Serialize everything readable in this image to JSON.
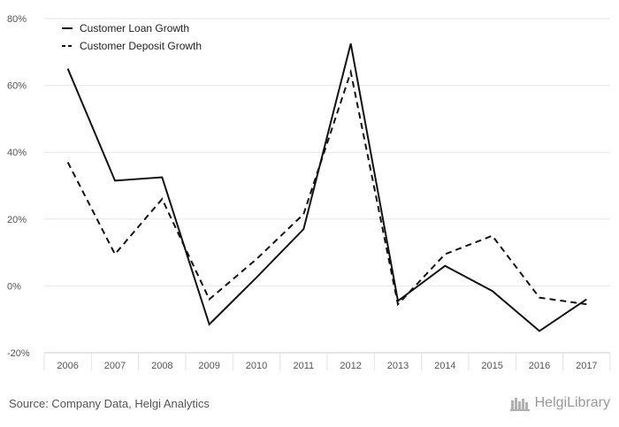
{
  "chart_data": {
    "type": "line",
    "categories": [
      "2006",
      "2007",
      "2008",
      "2009",
      "2010",
      "2011",
      "2012",
      "2013",
      "2014",
      "2015",
      "2016",
      "2017"
    ],
    "series": [
      {
        "name": "Customer Loan Growth",
        "style": "solid",
        "values": [
          65,
          31.5,
          32.5,
          -11.5,
          2.5,
          17,
          72.5,
          -4.5,
          6,
          -1.5,
          -13.5,
          -4
        ]
      },
      {
        "name": "Customer Deposit Growth",
        "style": "dashed",
        "values": [
          37,
          9.5,
          26,
          -4,
          8,
          21.5,
          64,
          -5.5,
          9.5,
          15,
          -3.5,
          -5.5
        ]
      }
    ],
    "yticks": [
      "80%",
      "60%",
      "40%",
      "20%",
      "0%",
      "-20%"
    ],
    "ylim": [
      -20,
      80
    ],
    "grid": true,
    "legend_position": "top-left",
    "line_color": "#111111"
  },
  "footer": {
    "source": "Source: Company Data, Helgi Analytics",
    "brand": "HelgiLibrary"
  }
}
